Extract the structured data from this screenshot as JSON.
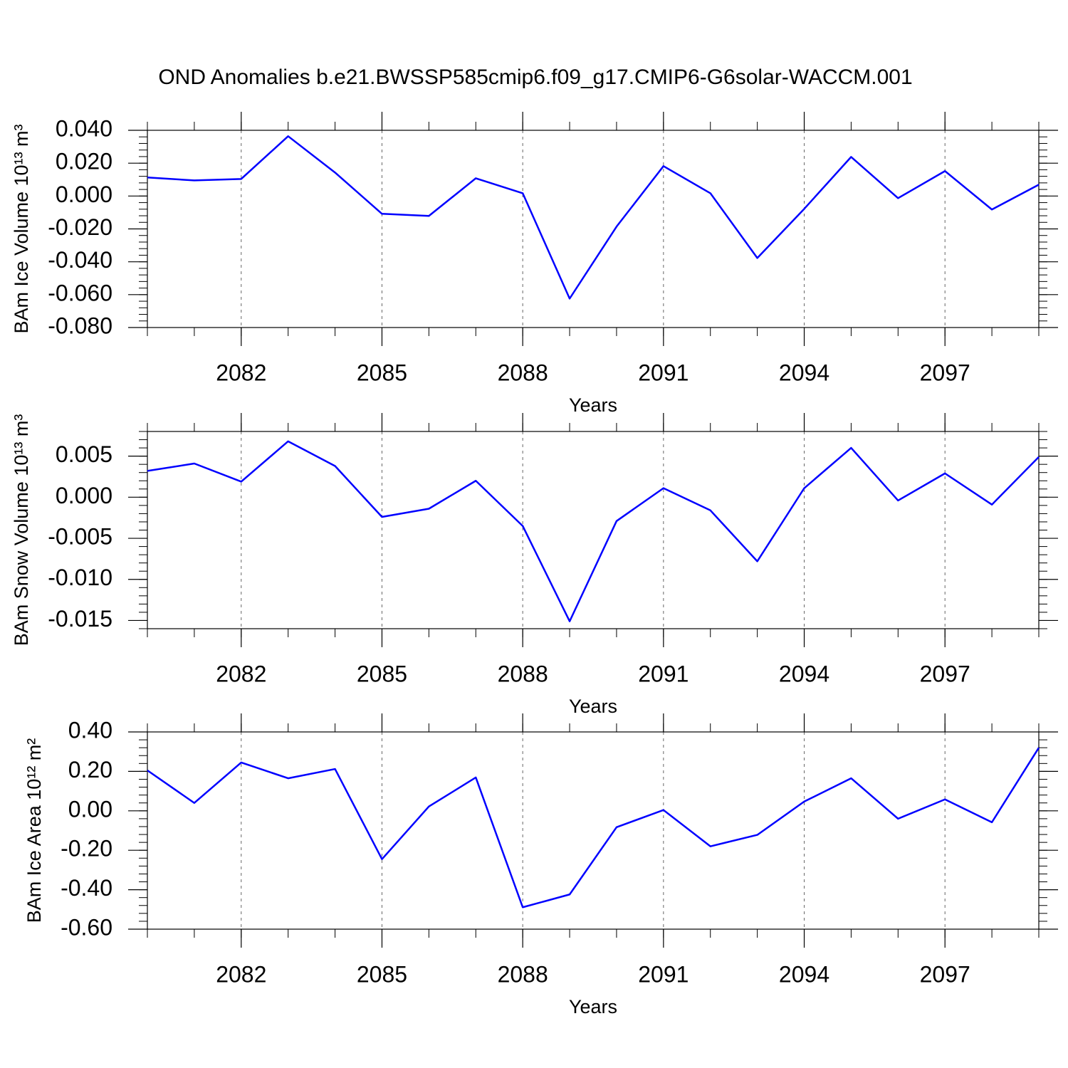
{
  "chart_data": [
    {
      "type": "line",
      "title": "OND Anomalies b.e21.BWSSP585cmip6.f09_g17.CMIP6-G6solar-WACCM.001",
      "ylabel": "BAm Ice Volume 10¹³ m³",
      "xlabel": "Years",
      "color": "#0000ff",
      "grid": true,
      "x": [
        2080,
        2081,
        2082,
        2083,
        2084,
        2085,
        2086,
        2087,
        2088,
        2089,
        2090,
        2091,
        2092,
        2093,
        2094,
        2095,
        2096,
        2097,
        2098,
        2099
      ],
      "values": [
        0.0113,
        0.0095,
        0.0104,
        0.0364,
        0.0143,
        -0.0108,
        -0.0121,
        0.0108,
        0.0017,
        -0.0624,
        -0.0186,
        0.0182,
        0.0017,
        -0.0377,
        -0.0078,
        0.0238,
        -0.0013,
        0.0152,
        -0.0082,
        0.0069
      ],
      "xlim": [
        2080,
        2099
      ],
      "xticks": [
        2082,
        2085,
        2088,
        2091,
        2094,
        2097
      ],
      "ylim": [
        -0.08,
        0.04
      ],
      "yticks": [
        {
          "value": -0.08,
          "label": "-0.080"
        },
        {
          "value": -0.06,
          "label": "-0.060"
        },
        {
          "value": -0.04,
          "label": "-0.040"
        },
        {
          "value": -0.02,
          "label": "-0.020"
        },
        {
          "value": 0,
          "label": "0.000"
        },
        {
          "value": 0.02,
          "label": "0.020"
        },
        {
          "value": 0.04,
          "label": "0.040"
        }
      ]
    },
    {
      "type": "line",
      "ylabel": "BAm Snow Volume 10¹³ m³",
      "xlabel": "Years",
      "color": "#0000ff",
      "grid": true,
      "x": [
        2080,
        2081,
        2082,
        2083,
        2084,
        2085,
        2086,
        2087,
        2088,
        2089,
        2090,
        2091,
        2092,
        2093,
        2094,
        2095,
        2096,
        2097,
        2098,
        2099
      ],
      "values": [
        0.0032,
        0.0041,
        0.0019,
        0.0068,
        0.0038,
        -0.0024,
        -0.0014,
        0.002,
        -0.0035,
        -0.0151,
        -0.0029,
        0.0011,
        -0.0016,
        -0.0078,
        0.0011,
        0.006,
        -0.0004,
        0.0029,
        -0.0009,
        0.0049
      ],
      "xlim": [
        2080,
        2099
      ],
      "xticks": [
        2082,
        2085,
        2088,
        2091,
        2094,
        2097
      ],
      "ylim": [
        -0.016,
        0.008
      ],
      "yticks": [
        {
          "value": -0.015,
          "label": "-0.015"
        },
        {
          "value": -0.01,
          "label": "-0.010"
        },
        {
          "value": -0.005,
          "label": "-0.005"
        },
        {
          "value": 0,
          "label": "0.000"
        },
        {
          "value": 0.005,
          "label": "0.005"
        }
      ]
    },
    {
      "type": "line",
      "ylabel": "BAm Ice Area 10¹² m²",
      "xlabel": "Years",
      "color": "#0000ff",
      "grid": true,
      "x": [
        2080,
        2081,
        2082,
        2083,
        2084,
        2085,
        2086,
        2087,
        2088,
        2089,
        2090,
        2091,
        2092,
        2093,
        2094,
        2095,
        2096,
        2097,
        2098,
        2099
      ],
      "values": [
        0.205,
        0.04,
        0.245,
        0.165,
        0.212,
        -0.245,
        0.022,
        0.169,
        -0.489,
        -0.424,
        -0.083,
        0.004,
        -0.18,
        -0.122,
        0.047,
        0.165,
        -0.04,
        0.058,
        -0.058,
        0.32
      ],
      "xlim": [
        2080,
        2099
      ],
      "xticks": [
        2082,
        2085,
        2088,
        2091,
        2094,
        2097
      ],
      "ylim": [
        -0.6,
        0.4
      ],
      "yticks": [
        {
          "value": -0.6,
          "label": "-0.60"
        },
        {
          "value": -0.4,
          "label": "-0.40"
        },
        {
          "value": -0.2,
          "label": "-0.20"
        },
        {
          "value": 0,
          "label": "0.00"
        },
        {
          "value": 0.2,
          "label": "0.20"
        },
        {
          "value": 0.4,
          "label": "0.40"
        }
      ]
    }
  ]
}
